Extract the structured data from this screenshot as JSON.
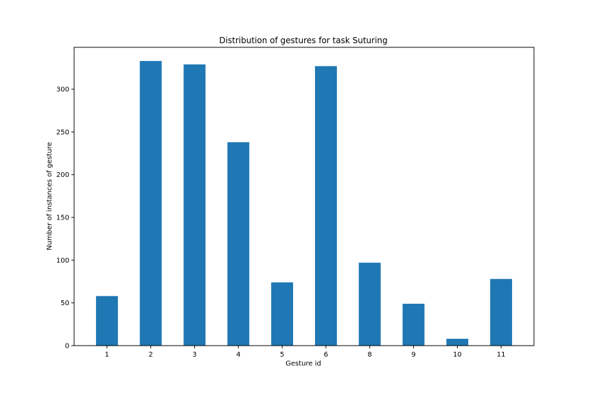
{
  "chart_data": {
    "type": "bar",
    "title": "Distribution of gestures for task Suturing",
    "xlabel": "Gesture id",
    "ylabel": "Number of instances of gesture",
    "categories": [
      "1",
      "2",
      "3",
      "4",
      "5",
      "6",
      "8",
      "9",
      "10",
      "11"
    ],
    "values": [
      58,
      333,
      329,
      238,
      74,
      327,
      97,
      49,
      8,
      78
    ],
    "ylim": [
      0,
      349
    ],
    "yticks": [
      "0",
      "50",
      "100",
      "150",
      "200",
      "250",
      "300"
    ],
    "bar_color": "#1f77b4",
    "grid": false,
    "legend": "none"
  }
}
